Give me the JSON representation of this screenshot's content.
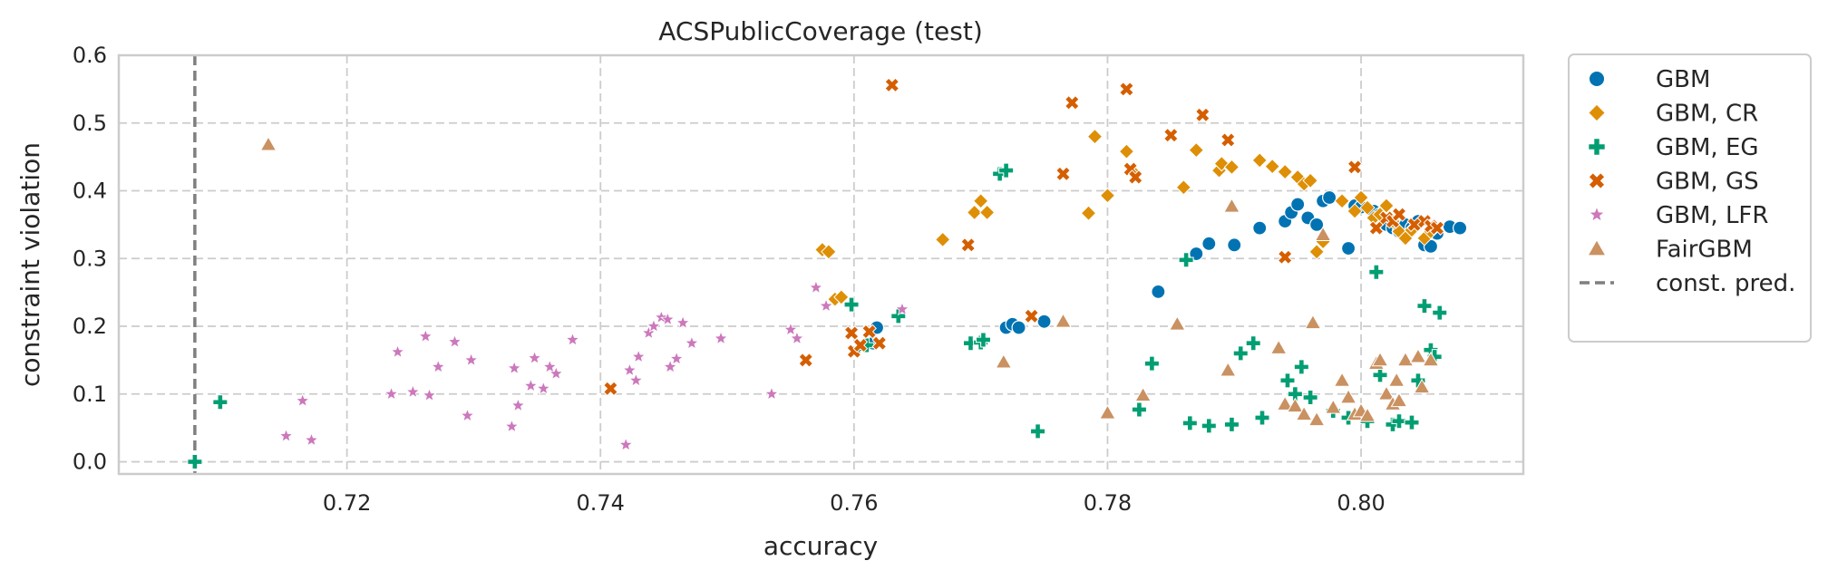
{
  "chart_data": {
    "type": "scatter",
    "title": "ACSPublicCoverage (test)",
    "xlabel": "accuracy",
    "ylabel": "constraint violation",
    "xlim": [
      0.702,
      0.8128
    ],
    "ylim": [
      -0.018,
      0.6
    ],
    "xticks": [
      0.72,
      0.74,
      0.76,
      0.78,
      0.8
    ],
    "xtick_labels": [
      "0.72",
      "0.74",
      "0.76",
      "0.78",
      "0.80"
    ],
    "yticks": [
      0.0,
      0.1,
      0.2,
      0.3,
      0.4,
      0.5,
      0.6
    ],
    "ytick_labels": [
      "0.0",
      "0.1",
      "0.2",
      "0.3",
      "0.4",
      "0.5",
      "0.6"
    ],
    "grid": true,
    "legend_position": "outside-right",
    "const_pred": {
      "name": "const. pred.",
      "x": 0.708,
      "color": "#7f7f7f"
    },
    "series": [
      {
        "name": "GBM",
        "marker": "circle",
        "color": "#0173b2",
        "points": [
          [
            0.7615,
            0.175
          ],
          [
            0.7618,
            0.198
          ],
          [
            0.772,
            0.198
          ],
          [
            0.7725,
            0.203
          ],
          [
            0.773,
            0.198
          ],
          [
            0.775,
            0.207
          ],
          [
            0.784,
            0.251
          ],
          [
            0.787,
            0.307
          ],
          [
            0.788,
            0.322
          ],
          [
            0.79,
            0.32
          ],
          [
            0.792,
            0.345
          ],
          [
            0.794,
            0.355
          ],
          [
            0.7945,
            0.368
          ],
          [
            0.795,
            0.38
          ],
          [
            0.7958,
            0.36
          ],
          [
            0.7965,
            0.35
          ],
          [
            0.797,
            0.385
          ],
          [
            0.7975,
            0.39
          ],
          [
            0.799,
            0.315
          ],
          [
            0.7995,
            0.378
          ],
          [
            0.8,
            0.376
          ],
          [
            0.801,
            0.37
          ],
          [
            0.8015,
            0.365
          ],
          [
            0.802,
            0.35
          ],
          [
            0.8025,
            0.345
          ],
          [
            0.803,
            0.34
          ],
          [
            0.8035,
            0.35
          ],
          [
            0.804,
            0.345
          ],
          [
            0.8045,
            0.355
          ],
          [
            0.805,
            0.32
          ],
          [
            0.8055,
            0.318
          ],
          [
            0.806,
            0.337
          ],
          [
            0.807,
            0.347
          ],
          [
            0.8078,
            0.345
          ]
        ]
      },
      {
        "name": "GBM, CR",
        "marker": "diamond",
        "color": "#de8f05",
        "points": [
          [
            0.7575,
            0.313
          ],
          [
            0.758,
            0.31
          ],
          [
            0.7585,
            0.24
          ],
          [
            0.759,
            0.243
          ],
          [
            0.767,
            0.328
          ],
          [
            0.7695,
            0.368
          ],
          [
            0.77,
            0.385
          ],
          [
            0.7705,
            0.368
          ],
          [
            0.7785,
            0.367
          ],
          [
            0.779,
            0.48
          ],
          [
            0.78,
            0.393
          ],
          [
            0.7815,
            0.458
          ],
          [
            0.782,
            0.428
          ],
          [
            0.786,
            0.405
          ],
          [
            0.787,
            0.46
          ],
          [
            0.7888,
            0.43
          ],
          [
            0.789,
            0.44
          ],
          [
            0.7898,
            0.435
          ],
          [
            0.792,
            0.445
          ],
          [
            0.793,
            0.436
          ],
          [
            0.794,
            0.428
          ],
          [
            0.795,
            0.42
          ],
          [
            0.7955,
            0.41
          ],
          [
            0.796,
            0.415
          ],
          [
            0.7965,
            0.31
          ],
          [
            0.797,
            0.325
          ],
          [
            0.7985,
            0.385
          ],
          [
            0.7995,
            0.37
          ],
          [
            0.8,
            0.39
          ],
          [
            0.8005,
            0.375
          ],
          [
            0.801,
            0.36
          ],
          [
            0.8015,
            0.365
          ],
          [
            0.802,
            0.378
          ],
          [
            0.8025,
            0.355
          ],
          [
            0.803,
            0.34
          ],
          [
            0.8035,
            0.33
          ],
          [
            0.804,
            0.342
          ],
          [
            0.8045,
            0.35
          ],
          [
            0.805,
            0.33
          ],
          [
            0.8055,
            0.34
          ]
        ]
      },
      {
        "name": "GBM, EG",
        "marker": "plus",
        "color": "#029e73",
        "points": [
          [
            0.708,
            0.0
          ],
          [
            0.71,
            0.088
          ],
          [
            0.7598,
            0.232
          ],
          [
            0.7603,
            0.167
          ],
          [
            0.761,
            0.172
          ],
          [
            0.7635,
            0.215
          ],
          [
            0.7692,
            0.175
          ],
          [
            0.77,
            0.176
          ],
          [
            0.7702,
            0.18
          ],
          [
            0.7715,
            0.425
          ],
          [
            0.772,
            0.43
          ],
          [
            0.7745,
            0.045
          ],
          [
            0.7825,
            0.077
          ],
          [
            0.7835,
            0.145
          ],
          [
            0.7862,
            0.298
          ],
          [
            0.7865,
            0.057
          ],
          [
            0.788,
            0.053
          ],
          [
            0.7898,
            0.055
          ],
          [
            0.7905,
            0.16
          ],
          [
            0.7915,
            0.175
          ],
          [
            0.7922,
            0.065
          ],
          [
            0.7942,
            0.12
          ],
          [
            0.7948,
            0.1
          ],
          [
            0.7953,
            0.14
          ],
          [
            0.796,
            0.095
          ],
          [
            0.7978,
            0.075
          ],
          [
            0.799,
            0.065
          ],
          [
            0.8005,
            0.06
          ],
          [
            0.8012,
            0.28
          ],
          [
            0.8015,
            0.128
          ],
          [
            0.8025,
            0.055
          ],
          [
            0.803,
            0.06
          ],
          [
            0.804,
            0.058
          ],
          [
            0.8045,
            0.12
          ],
          [
            0.805,
            0.23
          ],
          [
            0.8055,
            0.165
          ],
          [
            0.8062,
            0.22
          ],
          [
            0.8058,
            0.155
          ]
        ]
      },
      {
        "name": "GBM, GS",
        "marker": "x",
        "color": "#d55e00",
        "points": [
          [
            0.7408,
            0.108
          ],
          [
            0.7562,
            0.15
          ],
          [
            0.7598,
            0.19
          ],
          [
            0.76,
            0.163
          ],
          [
            0.7605,
            0.172
          ],
          [
            0.7612,
            0.192
          ],
          [
            0.762,
            0.175
          ],
          [
            0.763,
            0.556
          ],
          [
            0.769,
            0.32
          ],
          [
            0.774,
            0.215
          ],
          [
            0.7765,
            0.425
          ],
          [
            0.7772,
            0.53
          ],
          [
            0.7815,
            0.55
          ],
          [
            0.7818,
            0.432
          ],
          [
            0.7822,
            0.42
          ],
          [
            0.785,
            0.482
          ],
          [
            0.7875,
            0.512
          ],
          [
            0.7895,
            0.475
          ],
          [
            0.794,
            0.302
          ],
          [
            0.7995,
            0.435
          ],
          [
            0.8012,
            0.345
          ],
          [
            0.802,
            0.36
          ],
          [
            0.8025,
            0.355
          ],
          [
            0.803,
            0.365
          ],
          [
            0.8042,
            0.35
          ],
          [
            0.805,
            0.355
          ],
          [
            0.8055,
            0.348
          ],
          [
            0.806,
            0.345
          ]
        ]
      },
      {
        "name": "GBM, LFR",
        "marker": "star",
        "color": "#cc78bc",
        "points": [
          [
            0.7152,
            0.038
          ],
          [
            0.7165,
            0.09
          ],
          [
            0.7172,
            0.032
          ],
          [
            0.7235,
            0.1
          ],
          [
            0.724,
            0.162
          ],
          [
            0.7252,
            0.103
          ],
          [
            0.7262,
            0.185
          ],
          [
            0.7265,
            0.098
          ],
          [
            0.7272,
            0.14
          ],
          [
            0.7285,
            0.177
          ],
          [
            0.7295,
            0.068
          ],
          [
            0.7298,
            0.15
          ],
          [
            0.733,
            0.052
          ],
          [
            0.7332,
            0.138
          ],
          [
            0.7335,
            0.083
          ],
          [
            0.7345,
            0.112
          ],
          [
            0.7348,
            0.153
          ],
          [
            0.7355,
            0.108
          ],
          [
            0.736,
            0.14
          ],
          [
            0.7365,
            0.13
          ],
          [
            0.7378,
            0.18
          ],
          [
            0.742,
            0.025
          ],
          [
            0.7423,
            0.135
          ],
          [
            0.7428,
            0.12
          ],
          [
            0.743,
            0.155
          ],
          [
            0.7438,
            0.19
          ],
          [
            0.7442,
            0.2
          ],
          [
            0.7448,
            0.213
          ],
          [
            0.7453,
            0.21
          ],
          [
            0.7455,
            0.14
          ],
          [
            0.746,
            0.152
          ],
          [
            0.7465,
            0.205
          ],
          [
            0.7472,
            0.175
          ],
          [
            0.7495,
            0.182
          ],
          [
            0.7535,
            0.1
          ],
          [
            0.755,
            0.195
          ],
          [
            0.7555,
            0.182
          ],
          [
            0.757,
            0.257
          ],
          [
            0.7578,
            0.23
          ],
          [
            0.7638,
            0.225
          ]
        ]
      },
      {
        "name": "FairGBM",
        "marker": "triangle",
        "color": "#ca9161",
        "points": [
          [
            0.7138,
            0.468
          ],
          [
            0.7718,
            0.147
          ],
          [
            0.7765,
            0.207
          ],
          [
            0.78,
            0.072
          ],
          [
            0.7828,
            0.098
          ],
          [
            0.7855,
            0.203
          ],
          [
            0.7895,
            0.135
          ],
          [
            0.7898,
            0.377
          ],
          [
            0.7935,
            0.168
          ],
          [
            0.794,
            0.085
          ],
          [
            0.7948,
            0.082
          ],
          [
            0.7955,
            0.07
          ],
          [
            0.7962,
            0.205
          ],
          [
            0.7965,
            0.062
          ],
          [
            0.797,
            0.335
          ],
          [
            0.7978,
            0.08
          ],
          [
            0.7985,
            0.12
          ],
          [
            0.799,
            0.095
          ],
          [
            0.7995,
            0.07
          ],
          [
            0.8,
            0.075
          ],
          [
            0.8005,
            0.068
          ],
          [
            0.8012,
            0.145
          ],
          [
            0.8015,
            0.15
          ],
          [
            0.802,
            0.1
          ],
          [
            0.8025,
            0.085
          ],
          [
            0.8028,
            0.12
          ],
          [
            0.803,
            0.09
          ],
          [
            0.8035,
            0.15
          ],
          [
            0.8045,
            0.155
          ],
          [
            0.8048,
            0.11
          ],
          [
            0.8055,
            0.15
          ]
        ]
      }
    ]
  }
}
